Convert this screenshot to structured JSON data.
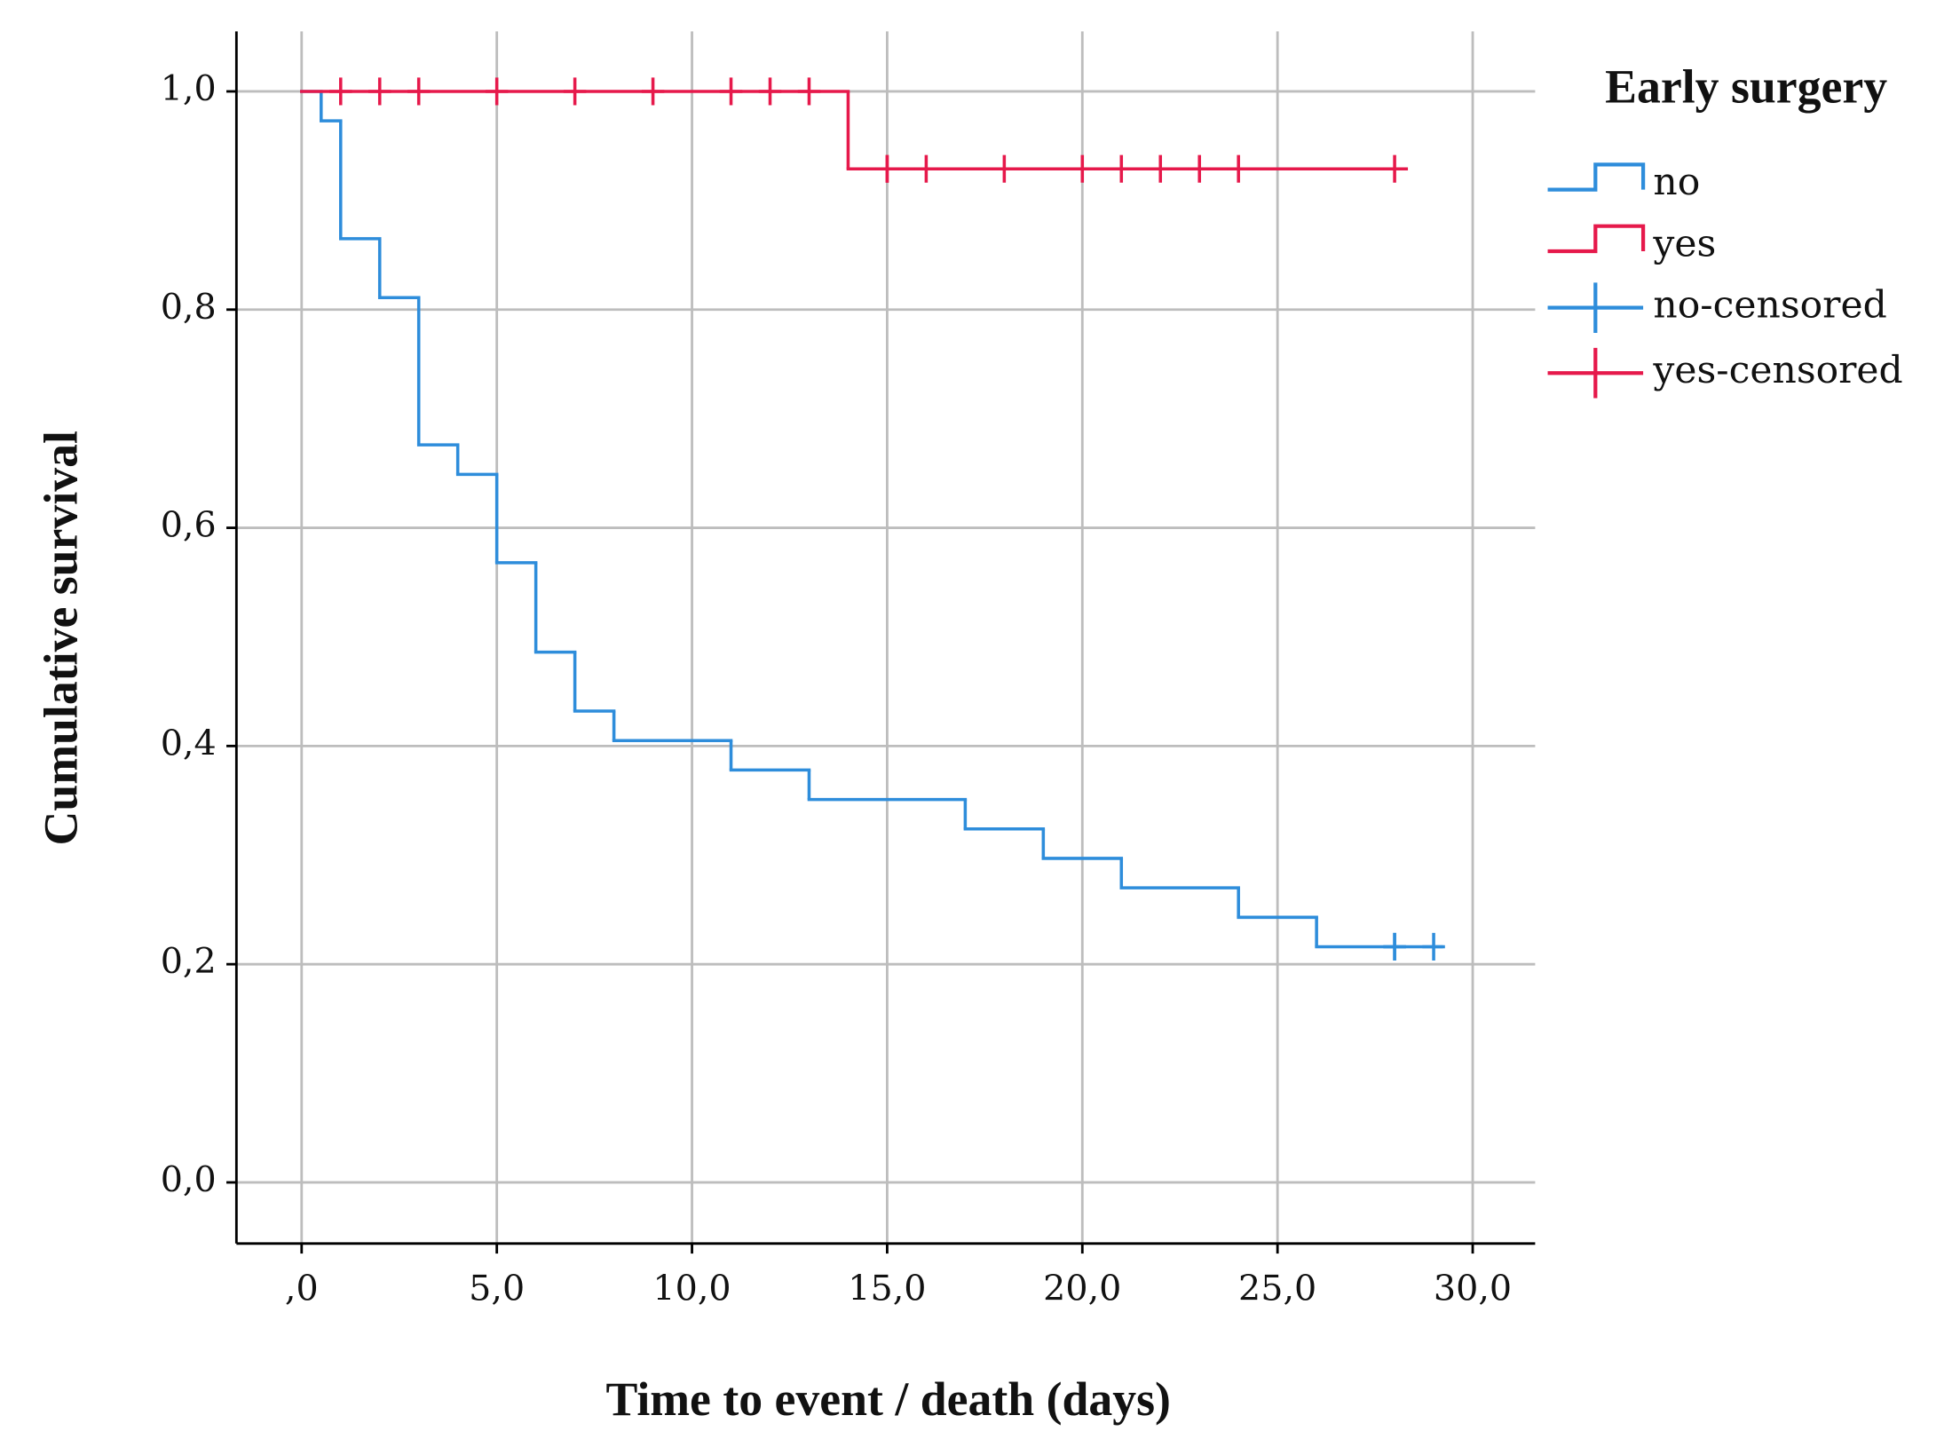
{
  "chart_data": {
    "type": "step",
    "x_label": "Time to event / death (days)",
    "y_label": "Cumulative survival",
    "legend_title": "Early surgery",
    "legend": "right",
    "grid": true,
    "xlim": [
      -1.67,
      31.6
    ],
    "ylim": [
      -0.056,
      1.055
    ],
    "xticks": [
      {
        "value": 0,
        "label": ",0"
      },
      {
        "value": 5,
        "label": "5,0"
      },
      {
        "value": 10,
        "label": "10,0"
      },
      {
        "value": 15,
        "label": "15,0"
      },
      {
        "value": 20,
        "label": "20,0"
      },
      {
        "value": 25,
        "label": "25,0"
      },
      {
        "value": 30,
        "label": "30,0"
      }
    ],
    "yticks": [
      {
        "value": 0,
        "label": "0,0"
      },
      {
        "value": 0.2,
        "label": "0,2"
      },
      {
        "value": 0.4,
        "label": "0,4"
      },
      {
        "value": 0.6,
        "label": "0,6"
      },
      {
        "value": 0.8,
        "label": "0,8"
      },
      {
        "value": 1.0,
        "label": "1,0"
      }
    ],
    "series": [
      {
        "name": "no",
        "color": "#2e8ddb",
        "drawstyle": "steps-post",
        "x": [
          0,
          0.5,
          1,
          2,
          3,
          4,
          5,
          6,
          7,
          8,
          11,
          13,
          17,
          19,
          21,
          24,
          26,
          29.2
        ],
        "values": [
          1.0,
          0.973,
          0.865,
          0.811,
          0.676,
          0.649,
          0.568,
          0.486,
          0.432,
          0.405,
          0.378,
          0.351,
          0.324,
          0.297,
          0.27,
          0.243,
          0.216,
          0.216
        ]
      },
      {
        "name": "yes",
        "color": "#e6194b",
        "drawstyle": "steps-post",
        "x": [
          0,
          14,
          28.3
        ],
        "values": [
          1.0,
          0.929,
          0.929
        ]
      },
      {
        "name": "no-censored",
        "color": "#2e8ddb",
        "marker": "plus",
        "x": [
          28,
          28,
          29
        ],
        "values": [
          0.216,
          0.216,
          0.216
        ]
      },
      {
        "name": "yes-censored",
        "color": "#e6194b",
        "marker": "plus",
        "x": [
          1,
          2,
          3,
          5,
          7,
          9,
          11,
          12,
          13,
          15,
          15,
          16,
          18,
          20,
          21,
          22,
          23,
          24,
          28
        ],
        "values": [
          1.0,
          1.0,
          1.0,
          1.0,
          1.0,
          1.0,
          1.0,
          1.0,
          1.0,
          0.929,
          0.929,
          0.929,
          0.929,
          0.929,
          0.929,
          0.929,
          0.929,
          0.929,
          0.929
        ]
      }
    ]
  }
}
